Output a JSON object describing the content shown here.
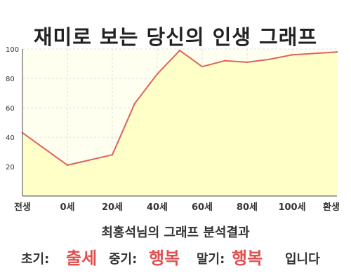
{
  "title": "재미로 보는 당신의 인생 그래프",
  "colors": {
    "line": "#e06060",
    "fill": "#ffffc8",
    "plot_bg": "#fffff0",
    "grid": "#dddddd",
    "highlight": "#e05050"
  },
  "chart_data": {
    "type": "area",
    "title": "",
    "xlabel": "",
    "ylabel": "",
    "ylim": [
      0,
      100
    ],
    "yticks": [
      20,
      40,
      60,
      80,
      100
    ],
    "xtick_labels": [
      "전생",
      "0세",
      "20세",
      "40세",
      "60세",
      "80세",
      "100세",
      "환생"
    ],
    "x": [
      -20,
      0,
      20,
      30,
      40,
      50,
      60,
      70,
      80,
      90,
      100,
      120
    ],
    "values": [
      43,
      21,
      28,
      63,
      83,
      99,
      88,
      92,
      91,
      93,
      96,
      98
    ],
    "grid": true
  },
  "caption": "최홍석님의 그래프 분석결과",
  "summary": {
    "early_label": "초기:",
    "early_value": "출세",
    "middle_label": "중기:",
    "middle_value": "행복",
    "late_label": "말기:",
    "late_value": "행복",
    "ending": "입니다"
  }
}
